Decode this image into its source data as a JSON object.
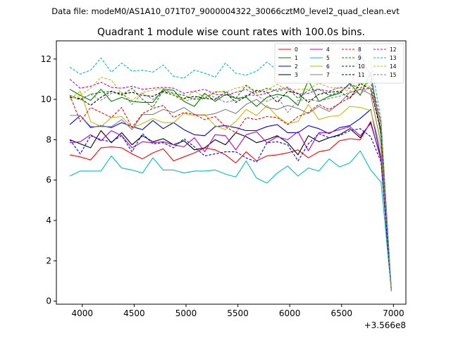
{
  "figure": {
    "suptitle": "Data file: modeM0/AS1A10_071T07_9000004322_30066cztM0_level2_quad_clean.evt"
  },
  "chart_data": {
    "type": "line",
    "title": "Quadrant 1 module wise count rates with 100.0s bins.",
    "xlabel": "",
    "ylabel": "",
    "x_offset_label": "+3.566e8",
    "xlim": [
      3750,
      7120
    ],
    "ylim": [
      -0.15,
      12.9
    ],
    "xticks": [
      4000,
      4500,
      5000,
      5500,
      6000,
      6500,
      7000
    ],
    "yticks": [
      0,
      2,
      4,
      6,
      8,
      10,
      12
    ],
    "grid": false,
    "legend": {
      "placement": "top-right",
      "columns": 4
    },
    "x": [
      3880,
      3980,
      4080,
      4180,
      4280,
      4380,
      4480,
      4580,
      4680,
      4780,
      4880,
      4980,
      5080,
      5180,
      5280,
      5380,
      5480,
      5580,
      5680,
      5780,
      5880,
      5980,
      6080,
      6180,
      6280,
      6380,
      6480,
      6580,
      6680,
      6780,
      6880,
      6980
    ],
    "series": [
      {
        "name": "0",
        "color": "#ff0000",
        "dash": "solid",
        "values": [
          7.25,
          7.15,
          7.0,
          7.6,
          7.65,
          7.6,
          7.3,
          7.05,
          7.35,
          7.55,
          6.95,
          7.15,
          7.35,
          7.6,
          7.5,
          7.25,
          6.85,
          7.4,
          6.95,
          7.2,
          7.25,
          7.35,
          7.5,
          7.1,
          7.4,
          7.5,
          7.95,
          8.05,
          8.0,
          8.9,
          7.0,
          0.5
        ]
      },
      {
        "name": "1",
        "color": "#008000",
        "dash": "solid",
        "values": [
          10.5,
          10.2,
          9.95,
          10.5,
          9.9,
          10.1,
          9.9,
          9.85,
          9.85,
          10.5,
          10.45,
          9.9,
          9.65,
          10.3,
          9.9,
          10.25,
          10.05,
          10.1,
          9.65,
          10.1,
          10.25,
          10.15,
          9.7,
          10.95,
          9.9,
          10.15,
          10.3,
          10.8,
          10.2,
          11.35,
          8.2,
          0.5
        ]
      },
      {
        "name": "2",
        "color": "#0000ff",
        "dash": "solid",
        "values": [
          8.75,
          9.2,
          8.6,
          8.7,
          8.6,
          8.85,
          8.65,
          8.5,
          8.95,
          8.55,
          8.85,
          8.5,
          8.25,
          8.2,
          8.65,
          8.7,
          8.6,
          8.45,
          8.45,
          8.65,
          8.75,
          8.35,
          8.35,
          8.7,
          8.55,
          8.3,
          8.6,
          8.7,
          9.05,
          9.5,
          7.1,
          0.5
        ]
      },
      {
        "name": "3",
        "color": "#000000",
        "dash": "solid",
        "values": [
          8.0,
          7.8,
          7.6,
          8.45,
          7.85,
          8.35,
          7.75,
          8.2,
          7.9,
          8.05,
          7.75,
          7.95,
          7.5,
          7.6,
          8.0,
          7.75,
          8.35,
          8.15,
          7.85,
          8.0,
          8.2,
          7.85,
          7.25,
          8.2,
          7.9,
          8.1,
          8.25,
          8.55,
          8.1,
          8.85,
          7.05,
          0.5
        ]
      },
      {
        "name": "4",
        "color": "#c000c0",
        "dash": "solid",
        "values": [
          7.85,
          7.9,
          8.25,
          7.95,
          8.45,
          8.2,
          7.6,
          7.9,
          7.85,
          7.9,
          7.75,
          7.65,
          8.1,
          7.4,
          8.25,
          8.2,
          7.5,
          8.25,
          8.4,
          7.85,
          8.15,
          8.0,
          8.4,
          7.45,
          8.35,
          8.35,
          8.5,
          8.65,
          8.2,
          8.8,
          7.1,
          0.5
        ]
      },
      {
        "name": "5",
        "color": "#00bfbf",
        "dash": "solid",
        "values": [
          6.2,
          6.45,
          6.45,
          6.45,
          7.2,
          6.6,
          6.5,
          6.35,
          7.1,
          6.5,
          6.5,
          6.35,
          6.45,
          6.45,
          6.5,
          6.3,
          6.15,
          6.95,
          6.1,
          5.85,
          6.35,
          6.7,
          6.2,
          6.6,
          6.45,
          7.05,
          6.65,
          6.85,
          7.45,
          6.5,
          5.9,
          0.5
        ]
      },
      {
        "name": "6",
        "color": "#bfbf00",
        "dash": "solid",
        "values": [
          10.0,
          10.4,
          8.9,
          8.65,
          9.1,
          9.15,
          8.6,
          8.8,
          9.05,
          8.85,
          8.85,
          9.3,
          9.2,
          9.25,
          8.7,
          8.5,
          8.9,
          9.5,
          9.2,
          9.7,
          9.15,
          8.8,
          8.9,
          9.75,
          9.0,
          9.15,
          9.2,
          9.65,
          9.6,
          9.45,
          7.5,
          0.5
        ]
      },
      {
        "name": "7",
        "color": "#808080",
        "dash": "solid",
        "values": [
          9.2,
          9.2,
          8.65,
          8.65,
          8.65,
          9.0,
          8.5,
          9.25,
          9.25,
          9.5,
          9.35,
          9.6,
          9.25,
          9.2,
          9.3,
          9.5,
          9.3,
          9.75,
          10.0,
          9.6,
          9.5,
          9.7,
          9.55,
          9.3,
          9.65,
          9.4,
          9.8,
          10.35,
          10.5,
          10.25,
          7.8,
          0.5
        ]
      },
      {
        "name": "8",
        "color": "#ff0000",
        "dash": "dashed",
        "values": [
          10.2,
          8.9,
          9.6,
          9.35,
          9.1,
          9.6,
          8.6,
          9.3,
          9.55,
          9.7,
          9.1,
          9.35,
          9.25,
          9.0,
          9.15,
          8.65,
          8.35,
          9.1,
          9.0,
          9.15,
          9.1,
          8.75,
          9.15,
          9.35,
          9.75,
          9.5,
          9.8,
          10.1,
          10.5,
          10.55,
          8.5,
          0.5
        ]
      },
      {
        "name": "9",
        "color": "#008000",
        "dash": "dashed",
        "values": [
          10.2,
          10.0,
          10.25,
          10.35,
          10.4,
          10.2,
          10.55,
          10.0,
          9.6,
          10.45,
          10.3,
          10.2,
          10.0,
          10.05,
          10.35,
          10.4,
          10.05,
          10.7,
          10.35,
          10.55,
          10.4,
          10.55,
          10.05,
          10.45,
          10.5,
          10.2,
          10.35,
          10.75,
          10.55,
          10.9,
          8.6,
          0.5
        ]
      },
      {
        "name": "10",
        "color": "#0000ff",
        "dash": "dashed",
        "values": [
          8.0,
          7.3,
          8.2,
          8.0,
          7.9,
          8.2,
          7.4,
          8.3,
          7.8,
          7.85,
          7.6,
          8.05,
          7.65,
          7.2,
          7.3,
          7.4,
          7.4,
          7.1,
          6.9,
          7.85,
          7.9,
          7.75,
          6.95,
          7.8,
          8.3,
          8.1,
          8.2,
          8.45,
          8.55,
          8.15,
          6.9,
          0.5
        ]
      },
      {
        "name": "11",
        "color": "#000000",
        "dash": "dashed",
        "values": [
          10.1,
          10.05,
          9.7,
          10.1,
          10.4,
          10.25,
          10.35,
          10.2,
          10.15,
          10.4,
          10.2,
          10.05,
          10.15,
          10.05,
          10.0,
          10.35,
          9.85,
          10.15,
          10.45,
          10.35,
          9.85,
          10.4,
          10.3,
          9.85,
          10.25,
          10.35,
          10.4,
          10.05,
          10.8,
          10.5,
          8.4,
          0.5
        ]
      },
      {
        "name": "12",
        "color": "#c000c0",
        "dash": "dashed",
        "values": [
          11.0,
          10.55,
          10.65,
          10.85,
          10.6,
          10.55,
          10.65,
          10.5,
          10.55,
          10.6,
          10.55,
          10.3,
          10.4,
          10.5,
          10.25,
          10.2,
          10.35,
          10.5,
          10.2,
          10.3,
          10.5,
          10.6,
          10.25,
          10.3,
          10.5,
          10.4,
          10.6,
          10.55,
          12.3,
          11.1,
          8.8,
          0.5
        ]
      },
      {
        "name": "13",
        "color": "#00bfbf",
        "dash": "dashed",
        "values": [
          11.6,
          11.25,
          11.45,
          12.05,
          11.35,
          11.8,
          11.4,
          11.45,
          11.35,
          11.7,
          11.15,
          11.05,
          11.45,
          11.3,
          11.1,
          11.8,
          11.3,
          11.2,
          11.4,
          11.85,
          11.45,
          11.35,
          11.3,
          11.55,
          11.7,
          11.35,
          11.3,
          11.4,
          12.05,
          11.85,
          9.0,
          0.5
        ]
      },
      {
        "name": "14",
        "color": "#bfbf00",
        "dash": "dashed",
        "values": [
          10.0,
          10.2,
          10.55,
          11.1,
          10.95,
          10.3,
          9.95,
          10.35,
          10.45,
          10.55,
          10.25,
          10.0,
          10.4,
          10.1,
          10.4,
          10.35,
          10.55,
          10.65,
          10.3,
          10.45,
          10.75,
          10.45,
          10.5,
          10.5,
          10.8,
          10.6,
          10.55,
          10.4,
          10.85,
          10.6,
          8.7,
          0.5
        ]
      },
      {
        "name": "15",
        "color": "#808080",
        "dash": "dashed",
        "values": [
          10.2,
          9.95,
          10.25,
          9.95,
          10.3,
          10.35,
          9.75,
          10.3,
          10.0,
          10.35,
          10.2,
          9.9,
          10.05,
          10.25,
          10.1,
          9.85,
          9.95,
          10.2,
          10.2,
          9.9,
          10.15,
          9.35,
          9.95,
          10.0,
          9.9,
          10.05,
          10.15,
          10.35,
          10.3,
          10.6,
          8.9,
          0.5
        ]
      }
    ]
  }
}
